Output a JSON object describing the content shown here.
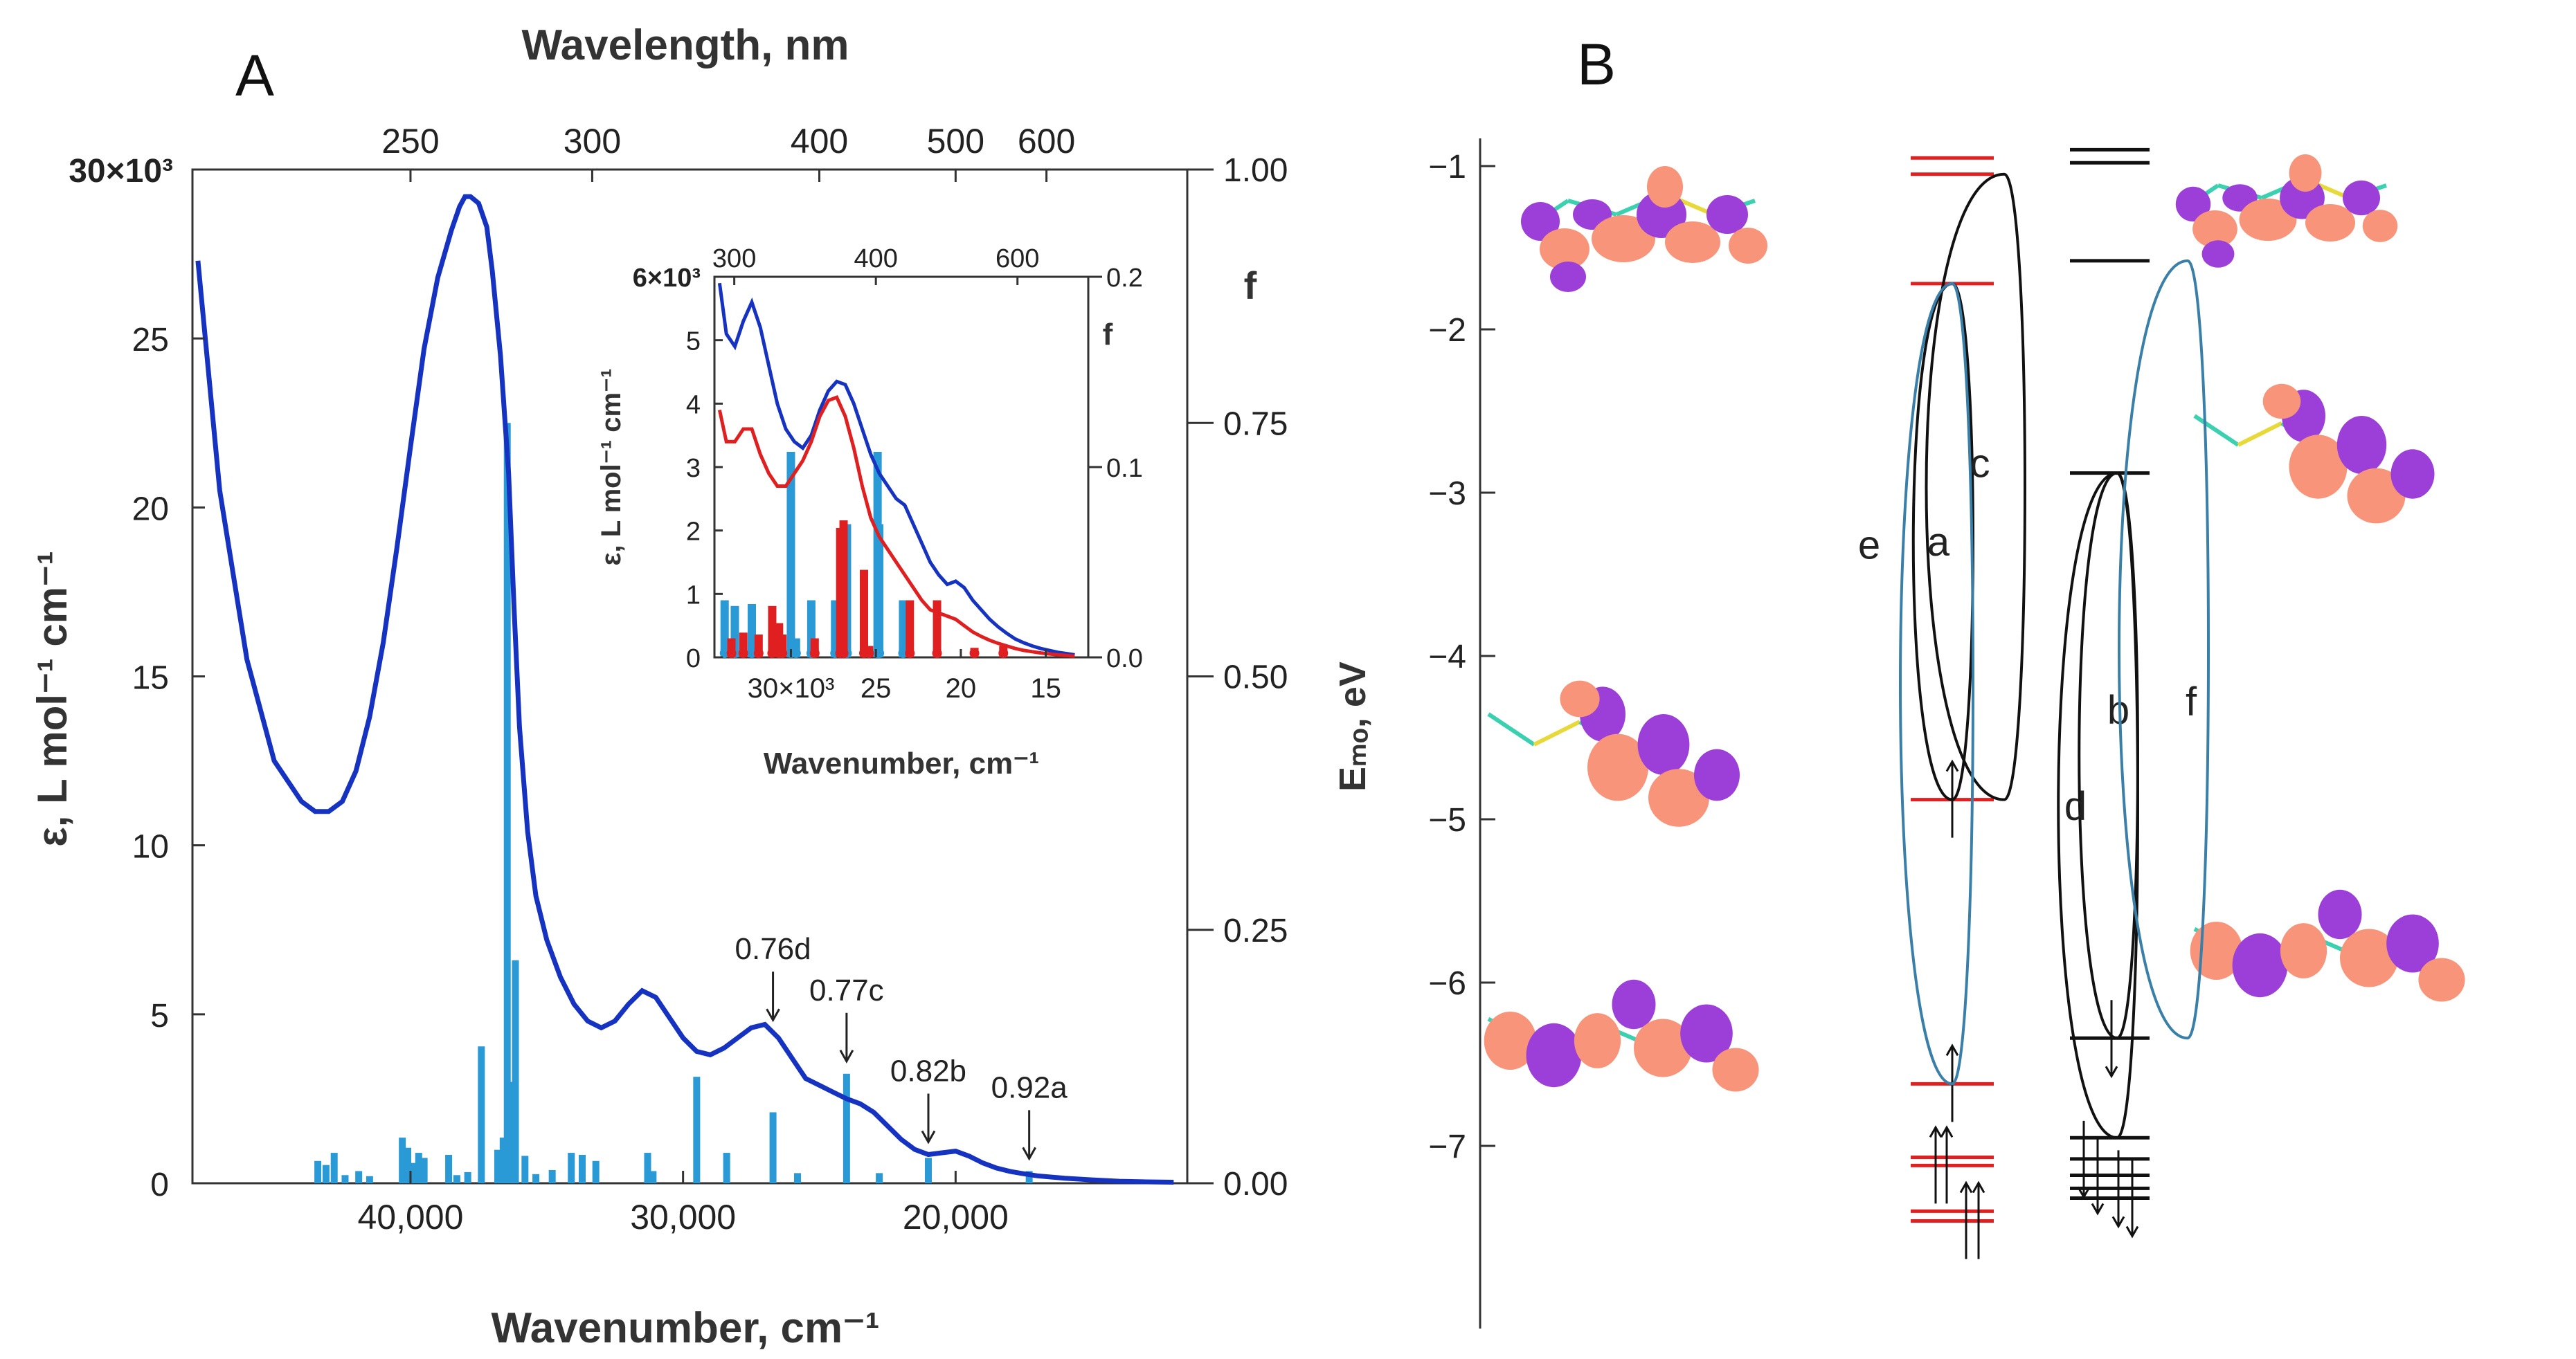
{
  "panels": {
    "a": "A",
    "b": "B"
  },
  "chart_data": [
    {
      "id": "A-main",
      "type": "line",
      "xlabel": "Wavenumber, cm⁻¹",
      "x2label": "Wavelength, nm",
      "ylabel": "ε, L mol⁻¹ cm⁻¹",
      "y2label": "f",
      "xlim": [
        48000,
        11500
      ],
      "ylim": [
        0,
        30000
      ],
      "y2lim": [
        0,
        1.0
      ],
      "x_ticks": [
        {
          "v": 40000,
          "label": "40,000"
        },
        {
          "v": 30000,
          "label": "30,000"
        },
        {
          "v": 20000,
          "label": "20,000"
        }
      ],
      "x2_ticks": [
        {
          "v": 250,
          "label": "250"
        },
        {
          "v": 300,
          "label": "300"
        },
        {
          "v": 400,
          "label": "400"
        },
        {
          "v": 500,
          "label": "500"
        },
        {
          "v": 600,
          "label": "600"
        }
      ],
      "y_ticks": [
        {
          "v": 0,
          "label": "0"
        },
        {
          "v": 5000,
          "label": "5"
        },
        {
          "v": 10000,
          "label": "10"
        },
        {
          "v": 15000,
          "label": "15"
        },
        {
          "v": 20000,
          "label": "20"
        },
        {
          "v": 25000,
          "label": "25"
        },
        {
          "v": 30000,
          "label": "30×10³"
        }
      ],
      "y2_ticks": [
        {
          "v": 0,
          "label": "0.00"
        },
        {
          "v": 0.25,
          "label": "0.25"
        },
        {
          "v": 0.5,
          "label": "0.50"
        },
        {
          "v": 0.75,
          "label": "0.75"
        },
        {
          "v": 1.0,
          "label": "1.00"
        }
      ],
      "series": [
        {
          "color": "#1533c0",
          "x": [
            47800,
            47000,
            46000,
            45000,
            44000,
            43500,
            43000,
            42500,
            42000,
            41500,
            41000,
            40500,
            40000,
            39500,
            39000,
            38500,
            38200,
            38000,
            37800,
            37500,
            37200,
            37000,
            36700,
            36400,
            36200,
            36000,
            35700,
            35400,
            35000,
            34500,
            34000,
            33500,
            33000,
            32500,
            32000,
            31500,
            31000,
            30500,
            30000,
            29500,
            29000,
            28500,
            28000,
            27500,
            27000,
            26500,
            26000,
            25500,
            25000,
            24500,
            24000,
            23500,
            23000,
            22500,
            22000,
            21500,
            21000,
            20500,
            20000,
            19500,
            19000,
            18500,
            18000,
            17500,
            17000,
            16000,
            15000,
            14000,
            13000,
            12000
          ],
          "y": [
            27300,
            20500,
            15500,
            12500,
            11300,
            11000,
            11000,
            11300,
            12200,
            13800,
            16000,
            18800,
            21800,
            24700,
            26800,
            28200,
            28900,
            29200,
            29200,
            29000,
            28300,
            27000,
            24500,
            21000,
            17000,
            13500,
            10400,
            8500,
            7200,
            6100,
            5300,
            4800,
            4600,
            4800,
            5300,
            5700,
            5500,
            4900,
            4300,
            3900,
            3800,
            4000,
            4300,
            4600,
            4700,
            4300,
            3700,
            3100,
            2900,
            2700,
            2500,
            2350,
            2100,
            1700,
            1300,
            1000,
            850,
            900,
            950,
            800,
            600,
            450,
            350,
            280,
            220,
            150,
            100,
            60,
            40,
            30
          ]
        }
      ],
      "oscillator_strengths": {
        "color": "#2a9ad6",
        "x": [
          43400,
          43100,
          42800,
          42400,
          41900,
          41500,
          40300,
          40100,
          39900,
          39700,
          39500,
          38600,
          38300,
          37900,
          37400,
          36800,
          36600,
          36450,
          36300,
          36150,
          35800,
          35400,
          34800,
          34100,
          33700,
          33200,
          31300,
          31100,
          29500,
          28400,
          26700,
          25800,
          24000,
          22800,
          21000,
          17300
        ],
        "f": [
          0.022,
          0.018,
          0.03,
          0.008,
          0.012,
          0.007,
          0.045,
          0.035,
          0.02,
          0.03,
          0.025,
          0.028,
          0.008,
          0.011,
          0.135,
          0.033,
          0.045,
          0.75,
          0.1,
          0.22,
          0.027,
          0.009,
          0.013,
          0.03,
          0.028,
          0.022,
          0.03,
          0.012,
          0.105,
          0.03,
          0.07,
          0.01,
          0.108,
          0.01,
          0.025,
          0.012
        ]
      },
      "annotations": [
        {
          "label": "0.76d",
          "x": 26700
        },
        {
          "label": "0.77c",
          "x": 24000
        },
        {
          "label": "0.82b",
          "x": 21000
        },
        {
          "label": "0.92a",
          "x": 17300
        }
      ]
    },
    {
      "id": "A-inset",
      "type": "line",
      "xlabel": "Wavenumber, cm⁻¹",
      "ylabel": "ε, L mol⁻¹ cm⁻¹",
      "y2label": "f",
      "xlim": [
        34500,
        12500
      ],
      "ylim": [
        0,
        6000
      ],
      "y2lim": [
        0,
        0.2
      ],
      "x_ticks": [
        {
          "v": 30000,
          "label": "30×10³"
        },
        {
          "v": 25000,
          "label": "25"
        },
        {
          "v": 20000,
          "label": "20"
        },
        {
          "v": 15000,
          "label": "15"
        }
      ],
      "x2_ticks": [
        {
          "v": 300,
          "label": "300"
        },
        {
          "v": 400,
          "label": "400"
        },
        {
          "v": 600,
          "label": "600"
        }
      ],
      "y_ticks": [
        {
          "v": 0,
          "label": "0"
        },
        {
          "v": 1000,
          "label": "1"
        },
        {
          "v": 2000,
          "label": "2"
        },
        {
          "v": 3000,
          "label": "3"
        },
        {
          "v": 4000,
          "label": "4"
        },
        {
          "v": 5000,
          "label": "5"
        },
        {
          "v": 6000,
          "label": "6×10³"
        }
      ],
      "y2_ticks": [
        {
          "v": 0,
          "label": "0.0"
        },
        {
          "v": 0.1,
          "label": "0.1"
        },
        {
          "v": 0.2,
          "label": "0.2"
        }
      ],
      "series": [
        {
          "color": "#1533c0",
          "x": [
            34200,
            33800,
            33300,
            32800,
            32300,
            31800,
            31300,
            30800,
            30300,
            29800,
            29300,
            28800,
            28300,
            27800,
            27300,
            26800,
            26300,
            25800,
            25300,
            24800,
            24300,
            23800,
            23300,
            22800,
            22300,
            21800,
            21300,
            20800,
            20300,
            19800,
            19300,
            18800,
            18300,
            17800,
            17300,
            16800,
            16300,
            15800,
            15300,
            14800,
            14300,
            13800,
            13300
          ],
          "y": [
            5900,
            5100,
            4900,
            5300,
            5600,
            5200,
            4600,
            4000,
            3600,
            3400,
            3300,
            3500,
            3900,
            4200,
            4350,
            4300,
            4000,
            3600,
            3200,
            2900,
            2700,
            2500,
            2400,
            2100,
            1800,
            1500,
            1300,
            1150,
            1200,
            1100,
            900,
            750,
            600,
            480,
            380,
            290,
            230,
            180,
            140,
            110,
            80,
            60,
            40
          ]
        },
        {
          "color": "#e02020",
          "x": [
            34200,
            33800,
            33300,
            32800,
            32300,
            31800,
            31300,
            30800,
            30300,
            29800,
            29300,
            28800,
            28300,
            27800,
            27300,
            26800,
            26300,
            25800,
            25300,
            24800,
            24300,
            23800,
            23300,
            22800,
            22300,
            21800,
            21300,
            20800,
            20300,
            19800,
            19300,
            18800,
            18300,
            17800,
            17300,
            16800,
            16300,
            15800,
            15300,
            14800,
            14300,
            13800,
            13300
          ],
          "y": [
            3900,
            3400,
            3400,
            3600,
            3600,
            3200,
            2900,
            2700,
            2700,
            2900,
            3100,
            3400,
            3800,
            4050,
            4100,
            3800,
            3300,
            2700,
            2200,
            1900,
            1700,
            1500,
            1300,
            1100,
            900,
            750,
            700,
            650,
            600,
            500,
            400,
            330,
            270,
            220,
            180,
            140,
            110,
            90,
            70,
            55,
            40,
            30,
            20
          ]
        }
      ],
      "oscillator_strengths": [
        {
          "color": "#2a9ad6",
          "x": [
            33900,
            33300,
            32300,
            30000,
            29700,
            28800,
            27400,
            26700,
            24900,
            24800,
            23400
          ],
          "f": [
            0.03,
            0.027,
            0.028,
            0.108,
            0.01,
            0.03,
            0.03,
            0.07,
            0.108,
            0.07,
            0.03
          ]
        },
        {
          "color": "#e02020",
          "x": [
            33500,
            32800,
            31900,
            31100,
            30700,
            30500,
            28600,
            27100,
            26900,
            25700,
            25400,
            23000,
            21400,
            19200,
            17500
          ],
          "f": [
            0.01,
            0.013,
            0.012,
            0.027,
            0.018,
            0.012,
            0.01,
            0.068,
            0.072,
            0.046,
            0.006,
            0.03,
            0.03,
            0.005,
            0.006
          ]
        }
      ]
    },
    {
      "id": "B-mo",
      "type": "diagram",
      "ylabel": "Eₘₒ, eV",
      "ylim": [
        -8.1,
        -0.6
      ],
      "y_ticks": [
        {
          "v": -1,
          "label": "−1"
        },
        {
          "v": -2,
          "label": "−2"
        },
        {
          "v": -3,
          "label": "−3"
        },
        {
          "v": -4,
          "label": "−4"
        },
        {
          "v": -5,
          "label": "−5"
        },
        {
          "v": -6,
          "label": "−6"
        },
        {
          "v": -7,
          "label": "−7"
        }
      ],
      "levels_left": {
        "color": "#e02020",
        "energies": [
          -0.95,
          -1.05,
          -1.72,
          -4.88,
          -6.62,
          -7.07,
          -7.12,
          -7.4,
          -7.46
        ]
      },
      "levels_right": {
        "color": "#111111",
        "energies": [
          -0.9,
          -0.98,
          -1.58,
          -2.88,
          -6.34,
          -6.95,
          -7.08,
          -7.18,
          -7.26,
          -7.32
        ]
      },
      "transitions": [
        {
          "label": "a",
          "from": -4.88,
          "to": -1.72,
          "color": "#111111"
        },
        {
          "label": "c",
          "from": -4.88,
          "to": -1.05,
          "color": "#111111"
        },
        {
          "label": "e",
          "from": -6.62,
          "to": -1.72,
          "color": "#3a7fa8"
        },
        {
          "label": "b",
          "from": -6.34,
          "to": -2.88,
          "color": "#111111"
        },
        {
          "label": "d",
          "from": -6.95,
          "to": -2.88,
          "color": "#111111"
        },
        {
          "label": "f",
          "from": -6.34,
          "to": -1.58,
          "color": "#3a7fa8"
        }
      ],
      "orbital_colors": {
        "positive": "#f7947a",
        "negative": "#9b3fd8",
        "bond_c": "#3ad0b0",
        "bond_s": "#e8d93a"
      }
    }
  ]
}
